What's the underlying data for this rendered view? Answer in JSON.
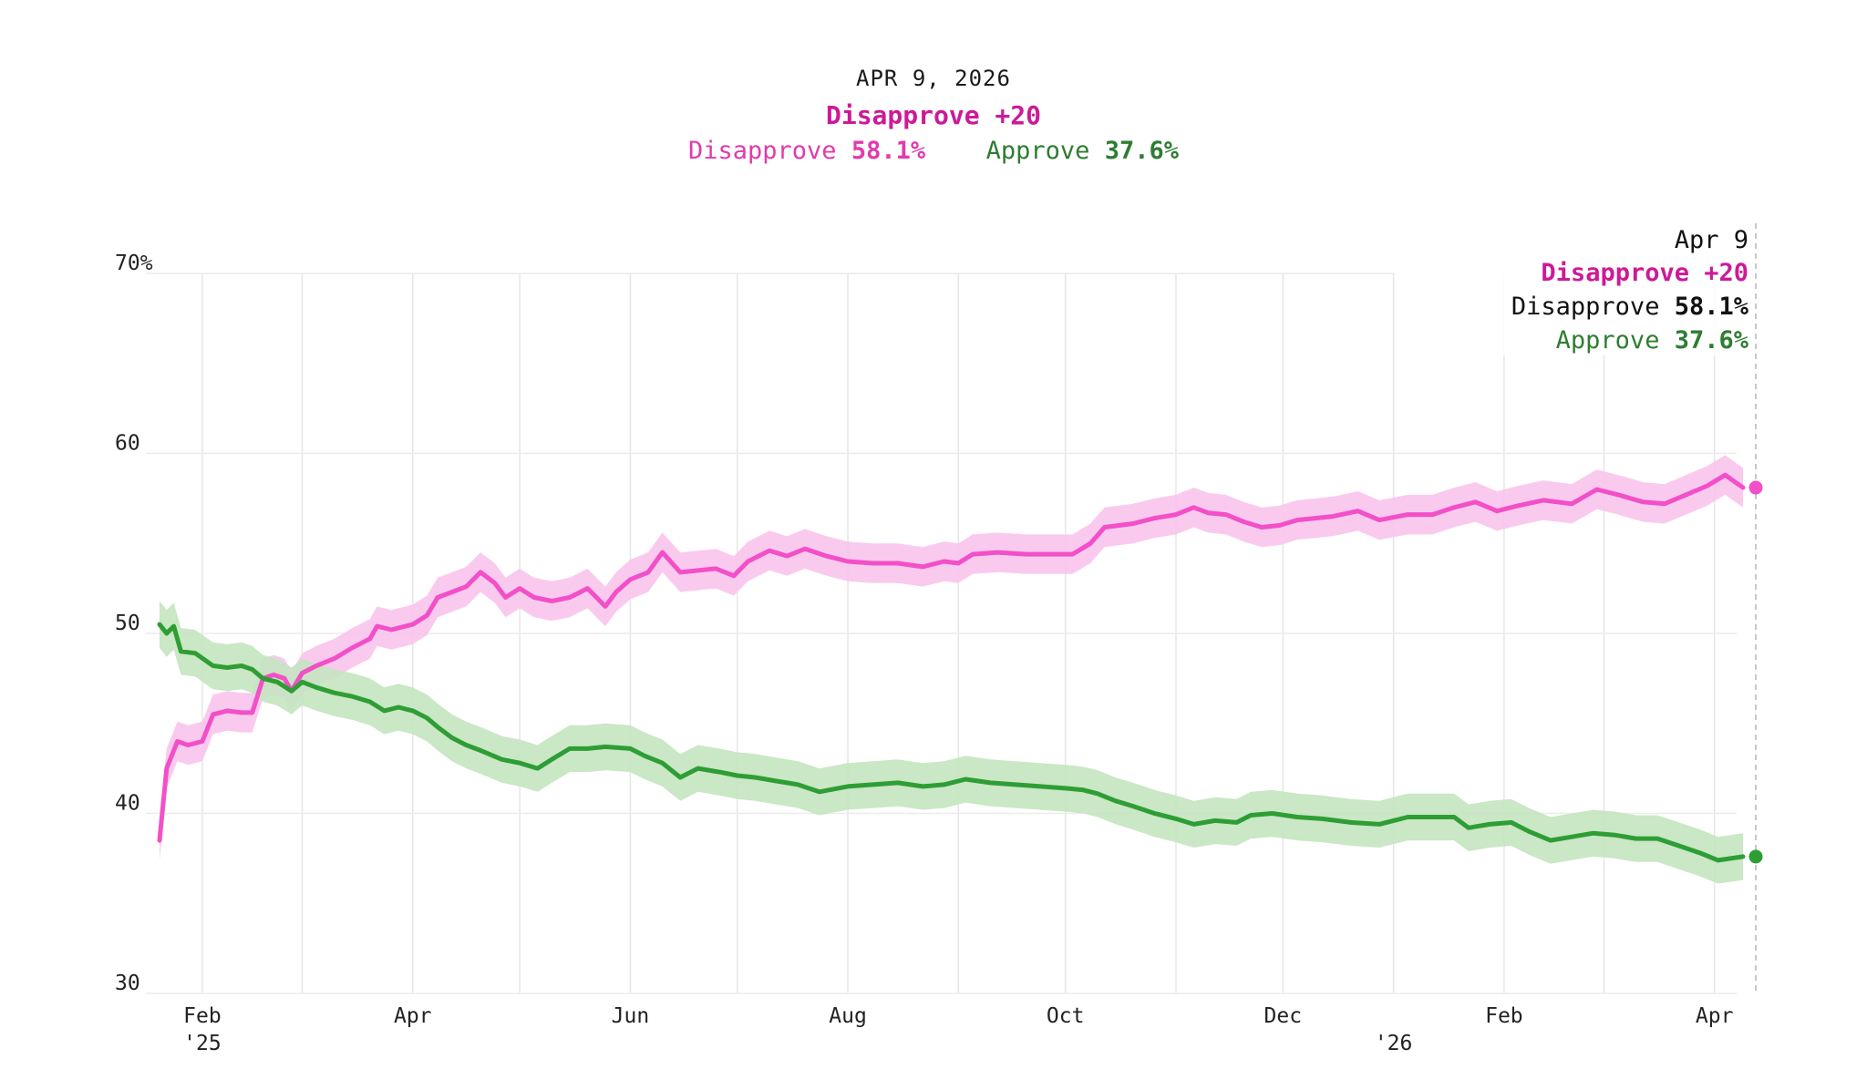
{
  "header": {
    "date": "APR 9, 2026",
    "net_label": "Disapprove +20",
    "disapprove_label": "Disapprove",
    "disapprove_value": "58.1%",
    "approve_label": "Approve",
    "approve_value": "37.6%"
  },
  "tooltip": {
    "date": "Apr 9",
    "net_label": "Disapprove +20",
    "disapprove_label": "Disapprove",
    "disapprove_value": "58.1%",
    "approve_label": "Approve",
    "approve_value": "37.6%"
  },
  "colors": {
    "disapprove": "#f24fc8",
    "disapprove_band": "#f9c4ec",
    "approve": "#2e9e34",
    "approve_band": "#c4e4c0",
    "net_text": "#cc1a99",
    "approve_text": "#2e7d32"
  },
  "chart_data": {
    "type": "line",
    "x_axis": {
      "range": [
        "2025-01-20",
        "2026-04-09"
      ],
      "ticks": [
        {
          "date": "2025-02-01",
          "label": "Feb",
          "sub": "'25"
        },
        {
          "date": "2025-04-01",
          "label": "Apr",
          "sub": ""
        },
        {
          "date": "2025-06-01",
          "label": "Jun",
          "sub": ""
        },
        {
          "date": "2025-08-01",
          "label": "Aug",
          "sub": ""
        },
        {
          "date": "2025-10-01",
          "label": "Oct",
          "sub": ""
        },
        {
          "date": "2025-12-01",
          "label": "Dec",
          "sub": ""
        },
        {
          "date": "2026-01-01",
          "label": "",
          "sub": "'26"
        },
        {
          "date": "2026-02-01",
          "label": "Feb",
          "sub": ""
        },
        {
          "date": "2026-04-01",
          "label": "Apr",
          "sub": ""
        }
      ],
      "gridlines": [
        "2025-02-01",
        "2025-03-01",
        "2025-04-01",
        "2025-05-01",
        "2025-06-01",
        "2025-07-01",
        "2025-08-01",
        "2025-09-01",
        "2025-10-01",
        "2025-11-01",
        "2025-12-01",
        "2026-01-01",
        "2026-02-01",
        "2026-03-01",
        "2026-04-01"
      ]
    },
    "y_axis": {
      "range": [
        30,
        70
      ],
      "ticks": [
        {
          "value": 30,
          "label": "30"
        },
        {
          "value": 40,
          "label": "40"
        },
        {
          "value": 50,
          "label": "50"
        },
        {
          "value": 60,
          "label": "60"
        },
        {
          "value": 70,
          "label": "70%"
        }
      ]
    },
    "grid": true,
    "series": [
      {
        "name": "Disapprove",
        "band": 1.1,
        "points": [
          [
            "2025-01-20",
            38.5
          ],
          [
            "2025-01-22",
            42.5
          ],
          [
            "2025-01-25",
            44.0
          ],
          [
            "2025-01-28",
            43.8
          ],
          [
            "2025-02-01",
            44.0
          ],
          [
            "2025-02-04",
            45.5
          ],
          [
            "2025-02-08",
            45.7
          ],
          [
            "2025-02-12",
            45.6
          ],
          [
            "2025-02-15",
            45.6
          ],
          [
            "2025-02-18",
            47.5
          ],
          [
            "2025-02-21",
            47.7
          ],
          [
            "2025-02-24",
            47.5
          ],
          [
            "2025-02-26",
            46.8
          ],
          [
            "2025-03-01",
            47.8
          ],
          [
            "2025-03-05",
            48.2
          ],
          [
            "2025-03-10",
            48.6
          ],
          [
            "2025-03-15",
            49.2
          ],
          [
            "2025-03-20",
            49.7
          ],
          [
            "2025-03-22",
            50.4
          ],
          [
            "2025-03-26",
            50.2
          ],
          [
            "2025-04-01",
            50.5
          ],
          [
            "2025-04-05",
            51.0
          ],
          [
            "2025-04-08",
            52.0
          ],
          [
            "2025-04-12",
            52.3
          ],
          [
            "2025-04-16",
            52.6
          ],
          [
            "2025-04-20",
            53.4
          ],
          [
            "2025-04-24",
            52.8
          ],
          [
            "2025-04-27",
            52.0
          ],
          [
            "2025-05-01",
            52.5
          ],
          [
            "2025-05-05",
            52.0
          ],
          [
            "2025-05-10",
            51.8
          ],
          [
            "2025-05-15",
            52.0
          ],
          [
            "2025-05-20",
            52.5
          ],
          [
            "2025-05-25",
            51.5
          ],
          [
            "2025-05-28",
            52.3
          ],
          [
            "2025-06-01",
            53.0
          ],
          [
            "2025-06-06",
            53.4
          ],
          [
            "2025-06-10",
            54.5
          ],
          [
            "2025-06-15",
            53.4
          ],
          [
            "2025-06-20",
            53.5
          ],
          [
            "2025-06-25",
            53.6
          ],
          [
            "2025-06-30",
            53.2
          ],
          [
            "2025-07-04",
            54.0
          ],
          [
            "2025-07-10",
            54.6
          ],
          [
            "2025-07-15",
            54.3
          ],
          [
            "2025-07-20",
            54.7
          ],
          [
            "2025-07-26",
            54.3
          ],
          [
            "2025-08-01",
            54.0
          ],
          [
            "2025-08-08",
            53.9
          ],
          [
            "2025-08-15",
            53.9
          ],
          [
            "2025-08-22",
            53.7
          ],
          [
            "2025-08-28",
            54.0
          ],
          [
            "2025-09-01",
            53.9
          ],
          [
            "2025-09-05",
            54.4
          ],
          [
            "2025-09-12",
            54.5
          ],
          [
            "2025-09-20",
            54.4
          ],
          [
            "2025-09-28",
            54.4
          ],
          [
            "2025-10-03",
            54.4
          ],
          [
            "2025-10-08",
            55.0
          ],
          [
            "2025-10-12",
            55.9
          ],
          [
            "2025-10-20",
            56.1
          ],
          [
            "2025-10-26",
            56.4
          ],
          [
            "2025-11-01",
            56.6
          ],
          [
            "2025-11-06",
            57.0
          ],
          [
            "2025-11-10",
            56.7
          ],
          [
            "2025-11-15",
            56.6
          ],
          [
            "2025-11-20",
            56.2
          ],
          [
            "2025-11-25",
            55.9
          ],
          [
            "2025-11-30",
            56.0
          ],
          [
            "2025-12-05",
            56.3
          ],
          [
            "2025-12-15",
            56.5
          ],
          [
            "2025-12-22",
            56.8
          ],
          [
            "2025-12-28",
            56.3
          ],
          [
            "2026-01-05",
            56.6
          ],
          [
            "2026-01-12",
            56.6
          ],
          [
            "2026-01-18",
            57.0
          ],
          [
            "2026-01-24",
            57.3
          ],
          [
            "2026-01-30",
            56.8
          ],
          [
            "2026-02-05",
            57.1
          ],
          [
            "2026-02-12",
            57.4
          ],
          [
            "2026-02-20",
            57.2
          ],
          [
            "2026-02-27",
            58.0
          ],
          [
            "2026-03-05",
            57.7
          ],
          [
            "2026-03-12",
            57.3
          ],
          [
            "2026-03-18",
            57.2
          ],
          [
            "2026-03-24",
            57.7
          ],
          [
            "2026-03-30",
            58.2
          ],
          [
            "2026-04-04",
            58.8
          ],
          [
            "2026-04-09",
            58.1
          ]
        ]
      },
      {
        "name": "Approve",
        "band": 1.3,
        "points": [
          [
            "2025-01-20",
            50.5
          ],
          [
            "2025-01-22",
            50.0
          ],
          [
            "2025-01-24",
            50.4
          ],
          [
            "2025-01-26",
            49.0
          ],
          [
            "2025-01-30",
            48.9
          ],
          [
            "2025-02-04",
            48.2
          ],
          [
            "2025-02-08",
            48.1
          ],
          [
            "2025-02-12",
            48.2
          ],
          [
            "2025-02-15",
            48.0
          ],
          [
            "2025-02-18",
            47.5
          ],
          [
            "2025-02-22",
            47.3
          ],
          [
            "2025-02-26",
            46.8
          ],
          [
            "2025-03-01",
            47.3
          ],
          [
            "2025-03-05",
            47.0
          ],
          [
            "2025-03-10",
            46.7
          ],
          [
            "2025-03-15",
            46.5
          ],
          [
            "2025-03-20",
            46.2
          ],
          [
            "2025-03-24",
            45.7
          ],
          [
            "2025-03-28",
            45.9
          ],
          [
            "2025-04-01",
            45.7
          ],
          [
            "2025-04-05",
            45.3
          ],
          [
            "2025-04-08",
            44.8
          ],
          [
            "2025-04-12",
            44.2
          ],
          [
            "2025-04-16",
            43.8
          ],
          [
            "2025-04-20",
            43.5
          ],
          [
            "2025-04-26",
            43.0
          ],
          [
            "2025-05-01",
            42.8
          ],
          [
            "2025-05-06",
            42.5
          ],
          [
            "2025-05-10",
            43.0
          ],
          [
            "2025-05-15",
            43.6
          ],
          [
            "2025-05-20",
            43.6
          ],
          [
            "2025-05-25",
            43.7
          ],
          [
            "2025-06-01",
            43.6
          ],
          [
            "2025-06-05",
            43.2
          ],
          [
            "2025-06-10",
            42.8
          ],
          [
            "2025-06-15",
            42.0
          ],
          [
            "2025-06-20",
            42.5
          ],
          [
            "2025-06-26",
            42.3
          ],
          [
            "2025-07-01",
            42.1
          ],
          [
            "2025-07-06",
            42.0
          ],
          [
            "2025-07-12",
            41.8
          ],
          [
            "2025-07-18",
            41.6
          ],
          [
            "2025-07-24",
            41.2
          ],
          [
            "2025-08-01",
            41.5
          ],
          [
            "2025-08-08",
            41.6
          ],
          [
            "2025-08-15",
            41.7
          ],
          [
            "2025-08-22",
            41.5
          ],
          [
            "2025-08-28",
            41.6
          ],
          [
            "2025-09-03",
            41.9
          ],
          [
            "2025-09-10",
            41.7
          ],
          [
            "2025-09-17",
            41.6
          ],
          [
            "2025-09-24",
            41.5
          ],
          [
            "2025-10-01",
            41.4
          ],
          [
            "2025-10-06",
            41.3
          ],
          [
            "2025-10-10",
            41.1
          ],
          [
            "2025-10-15",
            40.7
          ],
          [
            "2025-10-20",
            40.4
          ],
          [
            "2025-10-26",
            40.0
          ],
          [
            "2025-11-01",
            39.7
          ],
          [
            "2025-11-06",
            39.4
          ],
          [
            "2025-11-12",
            39.6
          ],
          [
            "2025-11-18",
            39.5
          ],
          [
            "2025-11-22",
            39.9
          ],
          [
            "2025-11-28",
            40.0
          ],
          [
            "2025-12-05",
            39.8
          ],
          [
            "2025-12-12",
            39.7
          ],
          [
            "2025-12-20",
            39.5
          ],
          [
            "2025-12-28",
            39.4
          ],
          [
            "2026-01-05",
            39.8
          ],
          [
            "2026-01-12",
            39.8
          ],
          [
            "2026-01-18",
            39.8
          ],
          [
            "2026-01-22",
            39.2
          ],
          [
            "2026-01-28",
            39.4
          ],
          [
            "2026-02-03",
            39.5
          ],
          [
            "2026-02-08",
            39.0
          ],
          [
            "2026-02-14",
            38.5
          ],
          [
            "2026-02-20",
            38.7
          ],
          [
            "2026-02-26",
            38.9
          ],
          [
            "2026-03-04",
            38.8
          ],
          [
            "2026-03-10",
            38.6
          ],
          [
            "2026-03-16",
            38.6
          ],
          [
            "2026-03-22",
            38.2
          ],
          [
            "2026-03-28",
            37.8
          ],
          [
            "2026-04-02",
            37.4
          ],
          [
            "2026-04-09",
            37.6
          ]
        ]
      }
    ]
  }
}
